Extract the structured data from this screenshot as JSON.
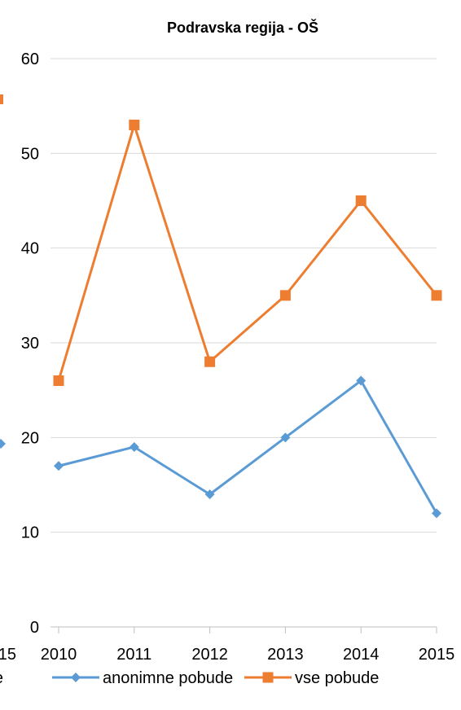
{
  "chart_data": {
    "type": "line",
    "title": "Podravska regija - OŠ",
    "categories": [
      "2010",
      "2011",
      "2012",
      "2013",
      "2014",
      "2015"
    ],
    "ylim": [
      0,
      60
    ],
    "yticks": [
      "0",
      "10",
      "20",
      "30",
      "40",
      "50",
      "60"
    ],
    "grid": true,
    "legend_position": "bottom",
    "series": [
      {
        "name": "anonimne pobude",
        "values": [
          17,
          19,
          14,
          20,
          26,
          12
        ],
        "color": "#5B9BD5",
        "marker": "diamond"
      },
      {
        "name": "vse pobude",
        "values": [
          26,
          53,
          28,
          35,
          45,
          35
        ],
        "color": "#ED7D31",
        "marker": "square"
      }
    ],
    "cropped_left_fragments": {
      "tick_label": "15",
      "legend_label": "e",
      "series_colors": [
        "#5B9BD5",
        "#ED7D31"
      ]
    }
  }
}
